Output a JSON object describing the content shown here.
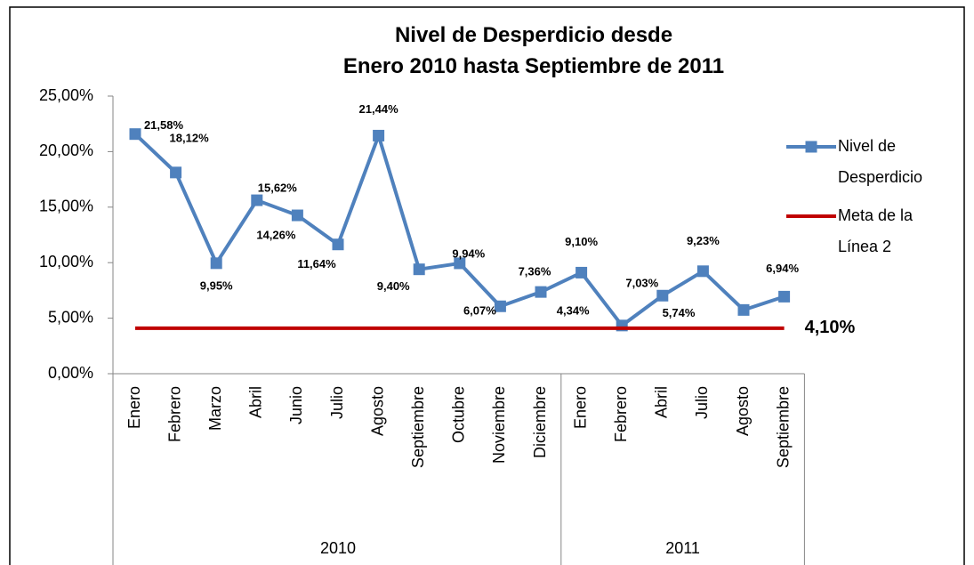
{
  "chart_data": {
    "type": "line",
    "title": "Nivel de Desperdicio desde\nEnero 2010 hasta Septiembre de 2011",
    "category_groups": [
      {
        "name": "2010",
        "categories": [
          "Enero",
          "Febrero",
          "Marzo",
          "Abril",
          "Junio",
          "Julio",
          "Agosto",
          "Septiembre",
          "Octubre",
          "Noviembre",
          "Diciembre"
        ]
      },
      {
        "name": "2011",
        "categories": [
          "Enero",
          "Febrero",
          "Abril",
          "Julio",
          "Agosto",
          "Septiembre"
        ]
      }
    ],
    "series": [
      {
        "name": "Nivel de Desperdicio",
        "color": "#4f81bd",
        "values": [
          21.58,
          18.12,
          9.95,
          15.62,
          14.26,
          11.64,
          21.44,
          9.4,
          9.94,
          6.07,
          7.36,
          9.1,
          4.34,
          7.03,
          9.23,
          5.74,
          6.94
        ],
        "value_labels": [
          "21,58%",
          "18,12%",
          "9,95%",
          "15,62%",
          "14,26%",
          "11,64%",
          "21,44%",
          "9,40%",
          "9,94%",
          "6,07%",
          "7,36%",
          "9,10%",
          "4,34%",
          "7,03%",
          "9,23%",
          "5,74%",
          "6,94%"
        ]
      },
      {
        "name": "Meta de la Línea 2",
        "color": "#c00000",
        "values": [
          4.1,
          4.1,
          4.1,
          4.1,
          4.1,
          4.1,
          4.1,
          4.1,
          4.1,
          4.1,
          4.1,
          4.1,
          4.1,
          4.1,
          4.1,
          4.1,
          4.1
        ],
        "value_labels": [
          null,
          null,
          null,
          null,
          null,
          null,
          null,
          null,
          null,
          null,
          null,
          null,
          null,
          null,
          null,
          null,
          "4,10%"
        ]
      }
    ],
    "ylim": [
      0,
      25
    ],
    "yticks": [
      {
        "value": 0,
        "label": "0,00%"
      },
      {
        "value": 5,
        "label": "5,00%"
      },
      {
        "value": 10,
        "label": "10,00%"
      },
      {
        "value": 15,
        "label": "15,00%"
      },
      {
        "value": 20,
        "label": "20,00%"
      },
      {
        "value": 25,
        "label": "25,00%"
      }
    ],
    "grid": false,
    "legend": "right"
  }
}
